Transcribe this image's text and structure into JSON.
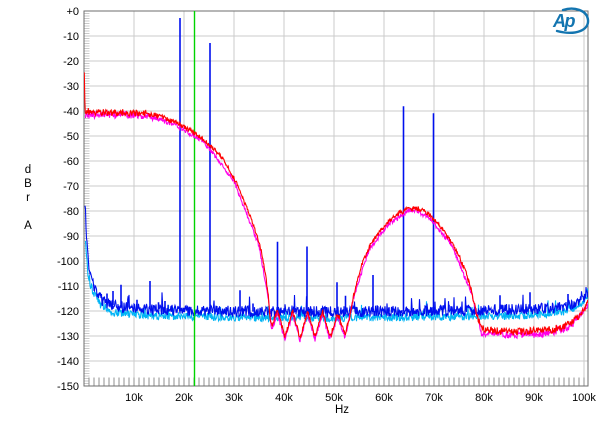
{
  "header": {
    "logo_text": "Ap"
  },
  "axes": {
    "y": {
      "unit_chars": [
        "d",
        "B",
        "r"
      ],
      "weighting": "A",
      "tick_labels": [
        "+0",
        "-10",
        "-20",
        "-30",
        "-40",
        "-50",
        "-60",
        "-70",
        "-80",
        "-90",
        "-100",
        "-110",
        "-120",
        "-130",
        "-140",
        "-150"
      ],
      "tick_values_db": [
        0,
        -10,
        -20,
        -30,
        -40,
        -50,
        -60,
        -70,
        -80,
        -90,
        -100,
        -110,
        -120,
        -130,
        -140,
        -150
      ]
    },
    "x": {
      "title": "Hz",
      "tick_labels": [
        "10k",
        "20k",
        "30k",
        "40k",
        "50k",
        "60k",
        "70k",
        "80k",
        "90k",
        "100k"
      ],
      "tick_values_khz": [
        10,
        20,
        30,
        40,
        50,
        60,
        70,
        80,
        90,
        100
      ]
    }
  },
  "colors": {
    "grid": "#cbcbcb",
    "border": "#6e6e6e",
    "minor_tick_left": "#c2c2c2",
    "minor_tick_bottom": "#8f8f8f",
    "text": "#000000",
    "logo": "#1375b0"
  },
  "chart_data": {
    "type": "line",
    "title": "",
    "xlabel": "Hz",
    "ylabel": "dBr A",
    "x_khz": [
      0,
      100.8
    ],
    "y_db": [
      0,
      -150
    ],
    "grid": "on",
    "legend": "none",
    "cursor_khz": 22.1,
    "series": [
      {
        "name": "noise-floor-cyan",
        "color": "#00b4f5",
        "pops": true,
        "points": [
          [
            0.3,
            -93,
            2
          ],
          [
            0.8,
            -105,
            2
          ],
          [
            1.5,
            -111,
            2
          ],
          [
            3,
            -117,
            1.8
          ],
          [
            6,
            -120.5,
            1.6
          ],
          [
            12,
            -121.8,
            1.6
          ],
          [
            25,
            -122.3,
            1.6
          ],
          [
            45,
            -122.8,
            1.6
          ],
          [
            70,
            -122.3,
            1.6
          ],
          [
            88,
            -121.8,
            1.6
          ],
          [
            95,
            -120.8,
            1.6
          ],
          [
            98,
            -118.8,
            1.5
          ],
          [
            100.2,
            -116,
            1.4
          ],
          [
            100.8,
            -114.5,
            1.3
          ]
        ]
      },
      {
        "name": "tone-spectrum-blue",
        "color": "#0010ee",
        "pops": true,
        "points": [
          [
            0.2,
            -78,
            1
          ],
          [
            0.45,
            -90,
            1.5
          ],
          [
            0.9,
            -101,
            2
          ],
          [
            1.6,
            -108,
            2.2
          ],
          [
            2.5,
            -113,
            2.2
          ],
          [
            4,
            -116.5,
            2.2
          ],
          [
            7,
            -118.3,
            2.2
          ],
          [
            12,
            -119.2,
            2.2
          ],
          [
            20,
            -119.8,
            2.2
          ],
          [
            35,
            -120.3,
            2.2
          ],
          [
            55,
            -120.3,
            2.2
          ],
          [
            75,
            -119.8,
            2.2
          ],
          [
            90,
            -119.2,
            2.2
          ],
          [
            96,
            -118.3,
            2.1
          ],
          [
            98.5,
            -116.5,
            2
          ],
          [
            100,
            -114.8,
            1.8
          ],
          [
            100.8,
            -113.2,
            1.5
          ]
        ],
        "spikes": [
          [
            4.6,
            -113
          ],
          [
            5.8,
            -112
          ],
          [
            7.4,
            -109.5
          ],
          [
            8.8,
            -115
          ],
          [
            10.6,
            -115.5
          ],
          [
            13.2,
            -108
          ],
          [
            14.9,
            -116.5
          ],
          [
            16.2,
            -116
          ],
          [
            19.2,
            -2.8
          ],
          [
            25.2,
            -12.8
          ],
          [
            31.2,
            -111.7
          ],
          [
            33.8,
            -117
          ],
          [
            38.7,
            -92.3
          ],
          [
            44.6,
            -94.2
          ],
          [
            50.6,
            -108.5
          ],
          [
            52.3,
            -113.9
          ],
          [
            57.8,
            -105.6
          ],
          [
            61.0,
            -118.5
          ],
          [
            63.9,
            -38.1
          ],
          [
            69.9,
            -40.9
          ],
          [
            73.0,
            -117.5
          ],
          [
            83.2,
            -113.7
          ],
          [
            89.2,
            -112.5
          ],
          [
            96.8,
            -113.2
          ]
        ]
      },
      {
        "name": "frequency-cursor",
        "type": "vline",
        "color": "#00d400",
        "x_khz": 22.1
      },
      {
        "name": "wideband-response-magenta",
        "color": "#ff00e8",
        "points": [
          [
            0.3,
            -41.5,
            1.5
          ],
          [
            8,
            -41.5,
            1.5
          ],
          [
            13,
            -42.2,
            1.2
          ],
          [
            18,
            -45.2,
            0.9
          ],
          [
            24,
            -52.5,
            0.8
          ],
          [
            30,
            -68,
            0.8
          ],
          [
            35,
            -94,
            0.8
          ],
          [
            36.8,
            -114,
            0.9
          ],
          [
            37.5,
            -127.5,
            1
          ],
          [
            38.7,
            -121,
            1
          ],
          [
            40.2,
            -131.5,
            1
          ],
          [
            41.7,
            -121,
            1
          ],
          [
            43.2,
            -131.8,
            1
          ],
          [
            44.7,
            -121.3,
            1
          ],
          [
            46.2,
            -131.2,
            1
          ],
          [
            47.7,
            -121.2,
            1
          ],
          [
            49.2,
            -131.6,
            1
          ],
          [
            50.7,
            -122,
            1
          ],
          [
            52.2,
            -130.5,
            1
          ],
          [
            54,
            -114,
            0.8
          ],
          [
            57,
            -95.5,
            0.8
          ],
          [
            61,
            -85,
            0.8
          ],
          [
            65,
            -80,
            1
          ],
          [
            66.2,
            -79.6,
            1
          ],
          [
            69,
            -82.5,
            0.9
          ],
          [
            73.5,
            -93.5,
            0.8
          ],
          [
            77.5,
            -113,
            0.9
          ],
          [
            79.5,
            -128.5,
            1.5
          ],
          [
            86,
            -129.5,
            1.6
          ],
          [
            93,
            -129,
            1.6
          ],
          [
            97.5,
            -126,
            1.3
          ],
          [
            100.8,
            -117.5,
            1
          ]
        ]
      },
      {
        "name": "wideband-response-red",
        "color": "#ff0000",
        "points": [
          [
            0.05,
            -24.5,
            0.3
          ],
          [
            0.1,
            -34,
            0.5
          ],
          [
            0.25,
            -40,
            1.4
          ],
          [
            3,
            -40.6,
            1.4
          ],
          [
            8,
            -40.6,
            1.4
          ],
          [
            12,
            -40.9,
            1.3
          ],
          [
            14,
            -41.4,
            1
          ],
          [
            16,
            -42.6,
            0.9
          ],
          [
            18,
            -44.3,
            0.9
          ],
          [
            20,
            -46.3,
            0.9
          ],
          [
            22,
            -48.6,
            0.9
          ],
          [
            24,
            -51.6,
            0.8
          ],
          [
            26,
            -55.2,
            0.8
          ],
          [
            27.5,
            -58.5,
            0.8
          ],
          [
            29,
            -63,
            0.8
          ],
          [
            31,
            -71,
            0.8
          ],
          [
            33,
            -81,
            0.8
          ],
          [
            34.5,
            -89.5,
            0.8
          ],
          [
            35.5,
            -96.5,
            0.8
          ],
          [
            36.2,
            -104,
            0.8
          ],
          [
            36.8,
            -113,
            0.9
          ],
          [
            37.2,
            -122,
            1
          ],
          [
            37.5,
            -126.5,
            1
          ],
          [
            38.7,
            -120,
            1
          ],
          [
            40.2,
            -130.5,
            1
          ],
          [
            41.7,
            -120,
            1
          ],
          [
            43.2,
            -130.8,
            1
          ],
          [
            44.7,
            -120.3,
            1
          ],
          [
            46.2,
            -130.2,
            1
          ],
          [
            47.7,
            -120.2,
            1
          ],
          [
            49.2,
            -130.6,
            1
          ],
          [
            50.7,
            -121,
            1
          ],
          [
            52.2,
            -129.5,
            1
          ],
          [
            53.2,
            -122,
            0.9
          ],
          [
            54,
            -113,
            0.8
          ],
          [
            55.5,
            -101.5,
            0.8
          ],
          [
            57,
            -94.5,
            0.8
          ],
          [
            59,
            -88.5,
            0.8
          ],
          [
            61,
            -84,
            0.8
          ],
          [
            63,
            -80.8,
            0.9
          ],
          [
            65,
            -79,
            1
          ],
          [
            66.2,
            -78.6,
            1
          ],
          [
            67.5,
            -79.4,
            1
          ],
          [
            69,
            -81.5,
            0.9
          ],
          [
            70.5,
            -84.5,
            0.8
          ],
          [
            72,
            -88,
            0.8
          ],
          [
            73.5,
            -92.5,
            0.8
          ],
          [
            75,
            -98,
            0.8
          ],
          [
            76.5,
            -105,
            0.8
          ],
          [
            77.5,
            -112,
            0.9
          ],
          [
            78.5,
            -121,
            1.1
          ],
          [
            79.5,
            -127,
            1.4
          ],
          [
            82,
            -128,
            1.5
          ],
          [
            86,
            -128.3,
            1.5
          ],
          [
            90,
            -128,
            1.5
          ],
          [
            93,
            -127.6,
            1.5
          ],
          [
            95.5,
            -126.5,
            1.4
          ],
          [
            97.5,
            -124.5,
            1.3
          ],
          [
            99,
            -122,
            1.2
          ],
          [
            100.3,
            -118.5,
            1.1
          ],
          [
            100.8,
            -116,
            1
          ]
        ]
      }
    ]
  }
}
